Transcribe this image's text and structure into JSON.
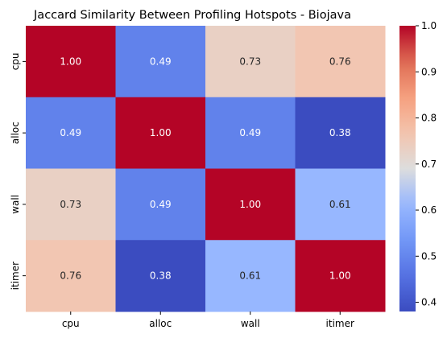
{
  "chart_data": {
    "type": "heatmap",
    "title": "Jaccard Similarity Between Profiling Hotspots - Biojava",
    "xlabel": "",
    "ylabel": "",
    "x_categories": [
      "cpu",
      "alloc",
      "wall",
      "itimer"
    ],
    "y_categories": [
      "cpu",
      "alloc",
      "wall",
      "itimer"
    ],
    "values": [
      [
        1.0,
        0.49,
        0.73,
        0.76
      ],
      [
        0.49,
        1.0,
        0.49,
        0.38
      ],
      [
        0.73,
        0.49,
        1.0,
        0.61
      ],
      [
        0.76,
        0.38,
        0.61,
        1.0
      ]
    ],
    "value_format": "0.00",
    "colormap": "coolwarm",
    "vmin": 0.38,
    "vmax": 1.0,
    "colorbar_ticks": [
      0.4,
      0.5,
      0.6,
      0.7,
      0.8,
      0.9,
      1.0
    ],
    "colorbar_tick_labels": [
      "0.4",
      "0.5",
      "0.6",
      "0.7",
      "0.8",
      "0.9",
      "1.0"
    ]
  }
}
